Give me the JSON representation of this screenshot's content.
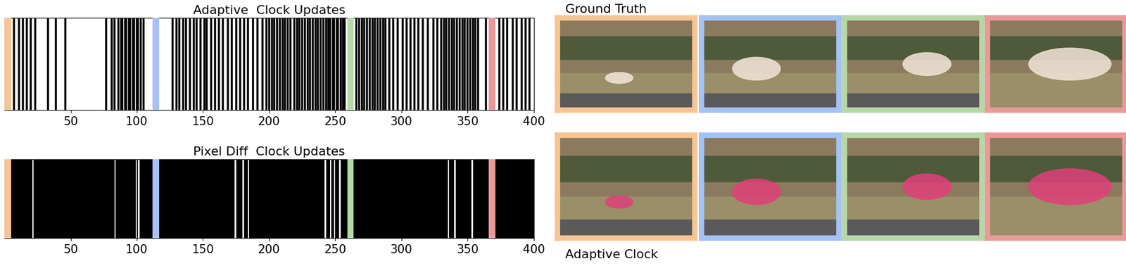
{
  "chart_data": [
    {
      "type": "event",
      "title": "Adaptive  Clock Updates",
      "x": [
        1,
        4,
        7,
        11,
        14,
        17,
        20,
        23,
        33,
        39,
        46,
        77,
        81,
        83,
        86,
        88,
        89,
        91,
        92,
        94,
        95,
        97,
        98,
        100,
        101,
        103,
        105,
        127,
        130,
        132,
        135,
        137,
        140,
        143,
        145,
        148,
        151,
        153,
        156,
        159,
        162,
        165,
        169,
        172,
        175,
        178,
        181,
        184,
        188,
        191,
        195,
        198,
        200,
        202,
        204,
        206,
        208,
        210,
        212,
        214,
        216,
        219,
        221,
        223,
        225,
        227,
        229,
        231,
        233,
        235,
        237,
        239,
        241,
        243,
        245,
        246,
        248,
        249,
        251,
        252,
        254,
        256,
        257,
        266,
        268,
        270,
        272,
        274,
        276,
        278,
        280,
        282,
        284,
        286,
        288,
        291,
        294,
        297,
        301,
        304,
        307,
        310,
        313,
        316,
        320,
        324,
        327,
        330,
        332,
        334,
        336,
        338,
        340,
        342,
        344,
        346,
        348,
        350,
        352,
        354,
        356,
        358,
        364,
        374,
        377,
        380,
        384,
        387,
        391,
        394,
        397
      ],
      "xlim": [
        0,
        400
      ],
      "xticks": [
        50,
        100,
        150,
        200,
        250,
        300,
        350,
        400
      ],
      "ylim": [
        0,
        1
      ],
      "tick_labels": "x",
      "color": "#000000",
      "highlights": [
        {
          "x": [
            0,
            5
          ],
          "color": "#f7c594"
        },
        {
          "x": [
            112,
            117
          ],
          "color": "#a4c2f4"
        },
        {
          "x": [
            259,
            264
          ],
          "color": "#b7d7a8"
        },
        {
          "x": [
            366,
            371
          ],
          "color": "#ea9999"
        }
      ]
    },
    {
      "type": "event_spans",
      "title": "Pixel Diff  Clock Updates",
      "spans": [
        [
          0,
          21
        ],
        [
          22,
          83
        ],
        [
          84,
          99
        ],
        [
          100,
          101
        ],
        [
          102,
          174
        ],
        [
          175,
          180
        ],
        [
          181,
          184
        ],
        [
          185,
          242
        ],
        [
          243,
          246
        ],
        [
          247,
          249
        ],
        [
          250,
          253
        ],
        [
          254,
          335
        ],
        [
          336,
          340
        ],
        [
          341,
          353
        ],
        [
          354,
          400
        ]
      ],
      "xlim": [
        0,
        400
      ],
      "xticks": [
        50,
        100,
        150,
        200,
        250,
        300,
        350,
        400
      ],
      "ylim": [
        0,
        1
      ],
      "tick_labels": "x",
      "color": "#000000",
      "highlights": [
        {
          "x": [
            0,
            5
          ],
          "color": "#f7c594"
        },
        {
          "x": [
            112,
            117
          ],
          "color": "#a4c2f4"
        },
        {
          "x": [
            259,
            264
          ],
          "color": "#b7d7a8"
        },
        {
          "x": [
            366,
            371
          ],
          "color": "#ea9999"
        }
      ]
    }
  ],
  "panels": {
    "rows": [
      "Ground Truth",
      "Adaptive Clock"
    ],
    "frame_colors": [
      "#f7c594",
      "#a4c2f4",
      "#b7d7a8",
      "#ea9999"
    ],
    "mask_colors": [
      "#f2e6d8",
      "#e0407a"
    ]
  }
}
